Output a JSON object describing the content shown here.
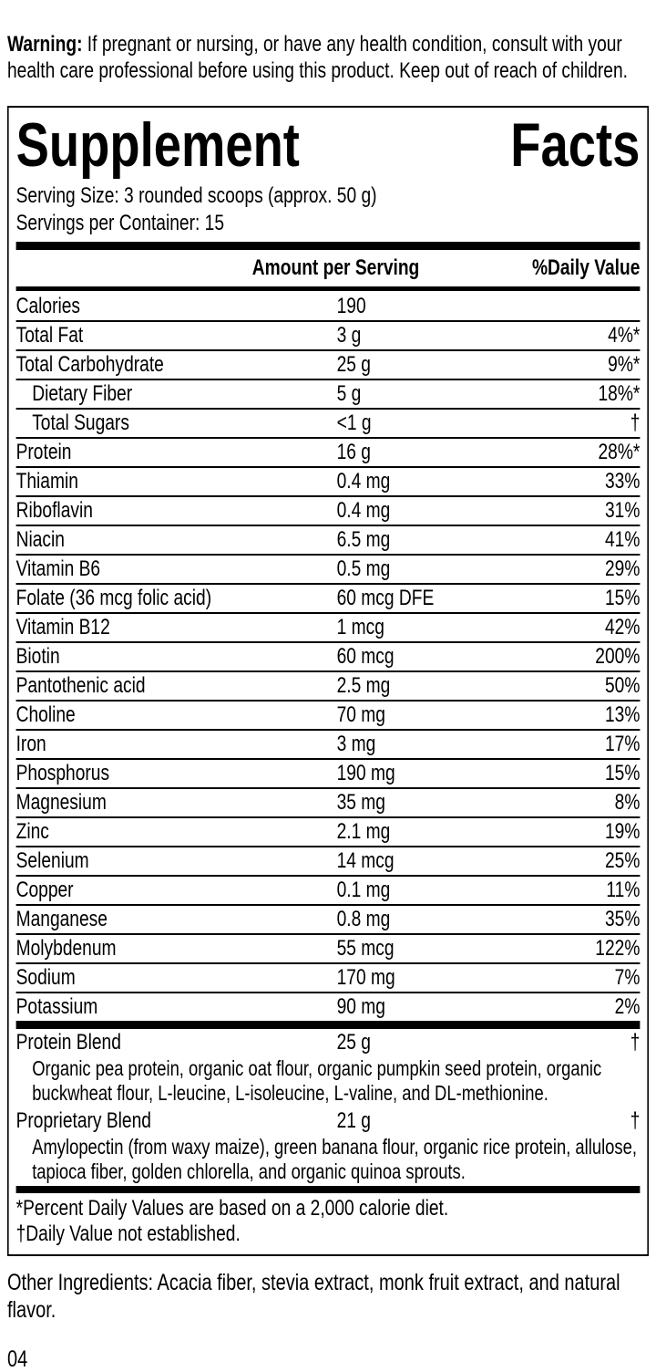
{
  "warning": {
    "label": "Warning:",
    "text": " If pregnant or nursing, or have any health condition, consult with your health care professional before using this product. Keep out of reach of children."
  },
  "panel": {
    "title_word1": "Supplement",
    "title_word2": "Facts",
    "serving_size": "Serving Size: 3 rounded scoops (approx. 50 g)",
    "servings_per_container": "Servings per Container: 15",
    "columns": {
      "amount": "Amount per Serving",
      "dv": "%Daily Value"
    },
    "rows": [
      {
        "label": "Calories",
        "amount": "190",
        "dv": "",
        "indent": false
      },
      {
        "label": "Total Fat",
        "amount": "3 g",
        "dv": "4%*",
        "indent": false
      },
      {
        "label": "Total Carbohydrate",
        "amount": "25 g",
        "dv": "9%*",
        "indent": false
      },
      {
        "label": "Dietary Fiber",
        "amount": "5 g",
        "dv": "18%*",
        "indent": true
      },
      {
        "label": "Total Sugars",
        "amount": "<1 g",
        "dv": "†",
        "indent": true
      },
      {
        "label": "Protein",
        "amount": "16 g",
        "dv": "28%*",
        "indent": false
      },
      {
        "label": "Thiamin",
        "amount": "0.4 mg",
        "dv": "33%",
        "indent": false
      },
      {
        "label": "Riboflavin",
        "amount": "0.4 mg",
        "dv": "31%",
        "indent": false
      },
      {
        "label": "Niacin",
        "amount": "6.5 mg",
        "dv": "41%",
        "indent": false
      },
      {
        "label": "Vitamin B6",
        "amount": "0.5 mg",
        "dv": "29%",
        "indent": false
      },
      {
        "label": "Folate (36 mcg folic acid)",
        "amount": "60 mcg DFE",
        "dv": "15%",
        "indent": false
      },
      {
        "label": "Vitamin B12",
        "amount": "1 mcg",
        "dv": "42%",
        "indent": false
      },
      {
        "label": "Biotin",
        "amount": "60 mcg",
        "dv": "200%",
        "indent": false
      },
      {
        "label": "Pantothenic acid",
        "amount": "2.5 mg",
        "dv": "50%",
        "indent": false
      },
      {
        "label": "Choline",
        "amount": "70 mg",
        "dv": "13%",
        "indent": false
      },
      {
        "label": "Iron",
        "amount": "3 mg",
        "dv": "17%",
        "indent": false
      },
      {
        "label": "Phosphorus",
        "amount": "190 mg",
        "dv": "15%",
        "indent": false
      },
      {
        "label": "Magnesium",
        "amount": "35 mg",
        "dv": "8%",
        "indent": false
      },
      {
        "label": "Zinc",
        "amount": "2.1 mg",
        "dv": "19%",
        "indent": false
      },
      {
        "label": "Selenium",
        "amount": "14 mcg",
        "dv": "25%",
        "indent": false
      },
      {
        "label": "Copper",
        "amount": "0.1 mg",
        "dv": "11%",
        "indent": false
      },
      {
        "label": "Manganese",
        "amount": "0.8 mg",
        "dv": "35%",
        "indent": false
      },
      {
        "label": "Molybdenum",
        "amount": "55 mcg",
        "dv": "122%",
        "indent": false
      },
      {
        "label": "Sodium",
        "amount": "170 mg",
        "dv": "7%",
        "indent": false
      },
      {
        "label": "Potassium",
        "amount": "90 mg",
        "dv": "2%",
        "indent": false
      }
    ],
    "blends": [
      {
        "label": "Protein Blend",
        "amount": "25 g",
        "dv": "†",
        "description": "Organic pea protein, organic oat flour, organic pumpkin seed protein, organic buckwheat flour, L-leucine, L-isoleucine, L-valine, and DL-methionine."
      },
      {
        "label": "Proprietary Blend",
        "amount": "21 g",
        "dv": "†",
        "description": "Amylopectin (from waxy maize), green banana flour, organic rice protein, allulose, tapioca fiber, golden chlorella, and organic quinoa sprouts."
      }
    ],
    "footnotes": [
      "*Percent Daily Values are based on a 2,000 calorie diet.",
      "†Daily Value not established."
    ]
  },
  "other_ingredients": "Other Ingredients: Acacia fiber, stevia extract, monk fruit extract, and natural flavor.",
  "page_number": "04",
  "colors": {
    "text": "#000000",
    "background": "#ffffff",
    "rule": "#000000"
  }
}
